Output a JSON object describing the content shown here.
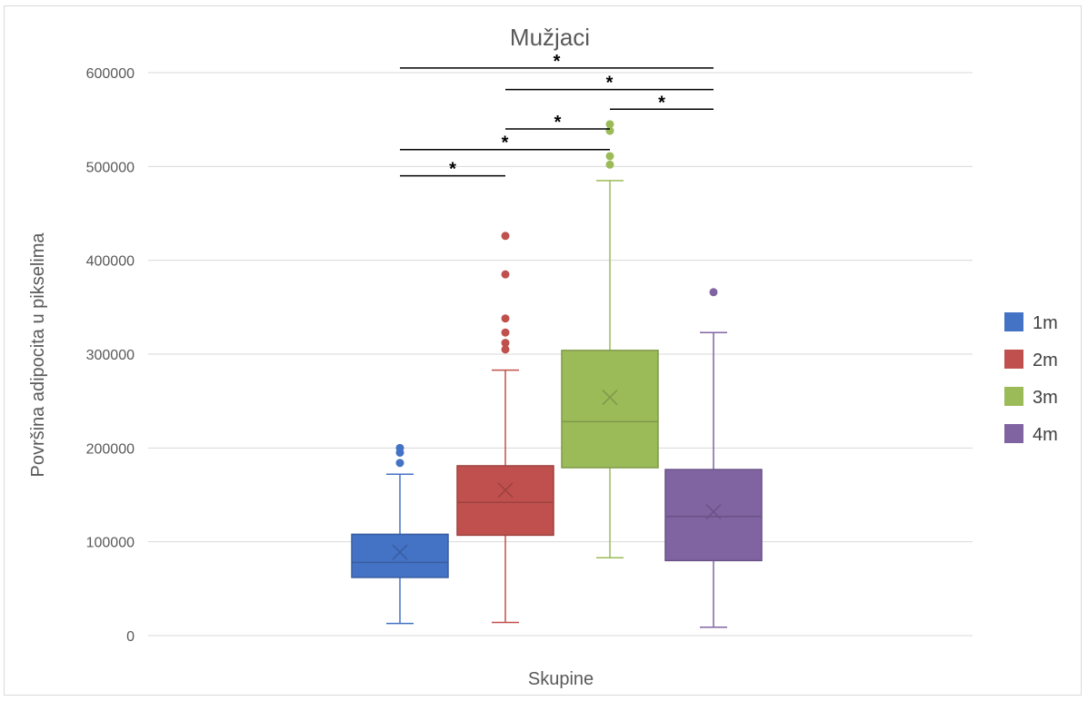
{
  "chart_data": {
    "type": "box",
    "title": "Mužjaci",
    "xlabel": "Skupine",
    "ylabel": "Površina adipocita u pikselima",
    "ylim": [
      0,
      600000
    ],
    "yticks": [
      0,
      100000,
      200000,
      300000,
      400000,
      500000,
      600000
    ],
    "ytick_labels": [
      "0",
      "100000",
      "200000",
      "300000",
      "400000",
      "500000",
      "600000"
    ],
    "grid": true,
    "legend_position": "right",
    "series": [
      {
        "name": "1m",
        "color": "#4472c4",
        "whisker_low": 13000,
        "q1": 62000,
        "median": 78000,
        "q3": 108000,
        "whisker_high": 172000,
        "mean": 89000,
        "outliers": [
          184000,
          195000,
          200000
        ]
      },
      {
        "name": "2m",
        "color": "#c0504d",
        "whisker_low": 14000,
        "q1": 107000,
        "median": 142000,
        "q3": 181000,
        "whisker_high": 283000,
        "mean": 155000,
        "outliers": [
          305000,
          312000,
          323000,
          338000,
          385000,
          426000
        ]
      },
      {
        "name": "3m",
        "color": "#9bbb59",
        "whisker_low": 83000,
        "q1": 179000,
        "median": 228000,
        "q3": 304000,
        "whisker_high": 485000,
        "mean": 254000,
        "outliers": [
          502000,
          511000,
          538000,
          545000
        ]
      },
      {
        "name": "4m",
        "color": "#8064a2",
        "whisker_low": 9000,
        "q1": 80000,
        "median": 127000,
        "q3": 177000,
        "whisker_high": 323000,
        "mean": 132000,
        "outliers": [
          366000
        ]
      }
    ],
    "significance": [
      {
        "from": 0,
        "to": 1,
        "label": "*",
        "y": 490000
      },
      {
        "from": 0,
        "to": 2,
        "label": "*",
        "y": 518000
      },
      {
        "from": 1,
        "to": 2,
        "label": "*",
        "y": 540000
      },
      {
        "from": 2,
        "to": 3,
        "label": "*",
        "y": 561000
      },
      {
        "from": 1,
        "to": 3,
        "label": "*",
        "y": 582000
      },
      {
        "from": 0,
        "to": 3,
        "label": "*",
        "y": 605000
      }
    ]
  }
}
